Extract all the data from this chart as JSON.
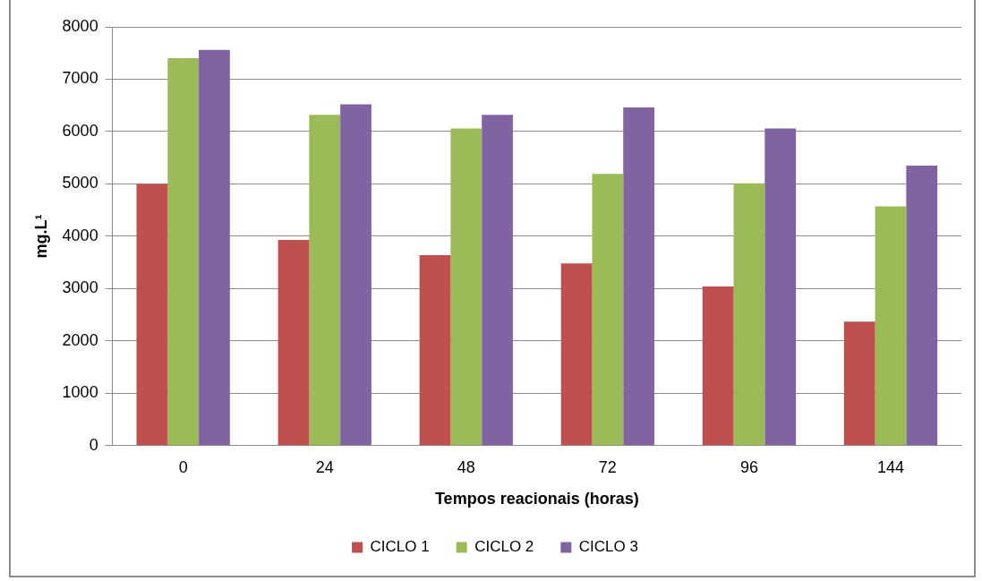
{
  "chart_data": {
    "type": "bar",
    "xlabel": "Tempos reacionais (horas)",
    "ylabel": "mg.L¹",
    "categories": [
      "0",
      "24",
      "48",
      "72",
      "96",
      "144"
    ],
    "series": [
      {
        "name": "CICLO 1",
        "color": "#c0504d",
        "values": [
          5000,
          3930,
          3640,
          3480,
          3040,
          2370
        ]
      },
      {
        "name": "CICLO 2",
        "color": "#9bbb59",
        "values": [
          7400,
          6320,
          6060,
          5190,
          5010,
          4570
        ]
      },
      {
        "name": "CICLO 3",
        "color": "#8064a2",
        "values": [
          7560,
          6520,
          6320,
          6460,
          6060,
          5350
        ]
      }
    ],
    "ylim": [
      0,
      8000
    ],
    "yticks": [
      0,
      1000,
      2000,
      3000,
      4000,
      5000,
      6000,
      7000,
      8000
    ],
    "grid": "y",
    "legend": "bottom"
  }
}
